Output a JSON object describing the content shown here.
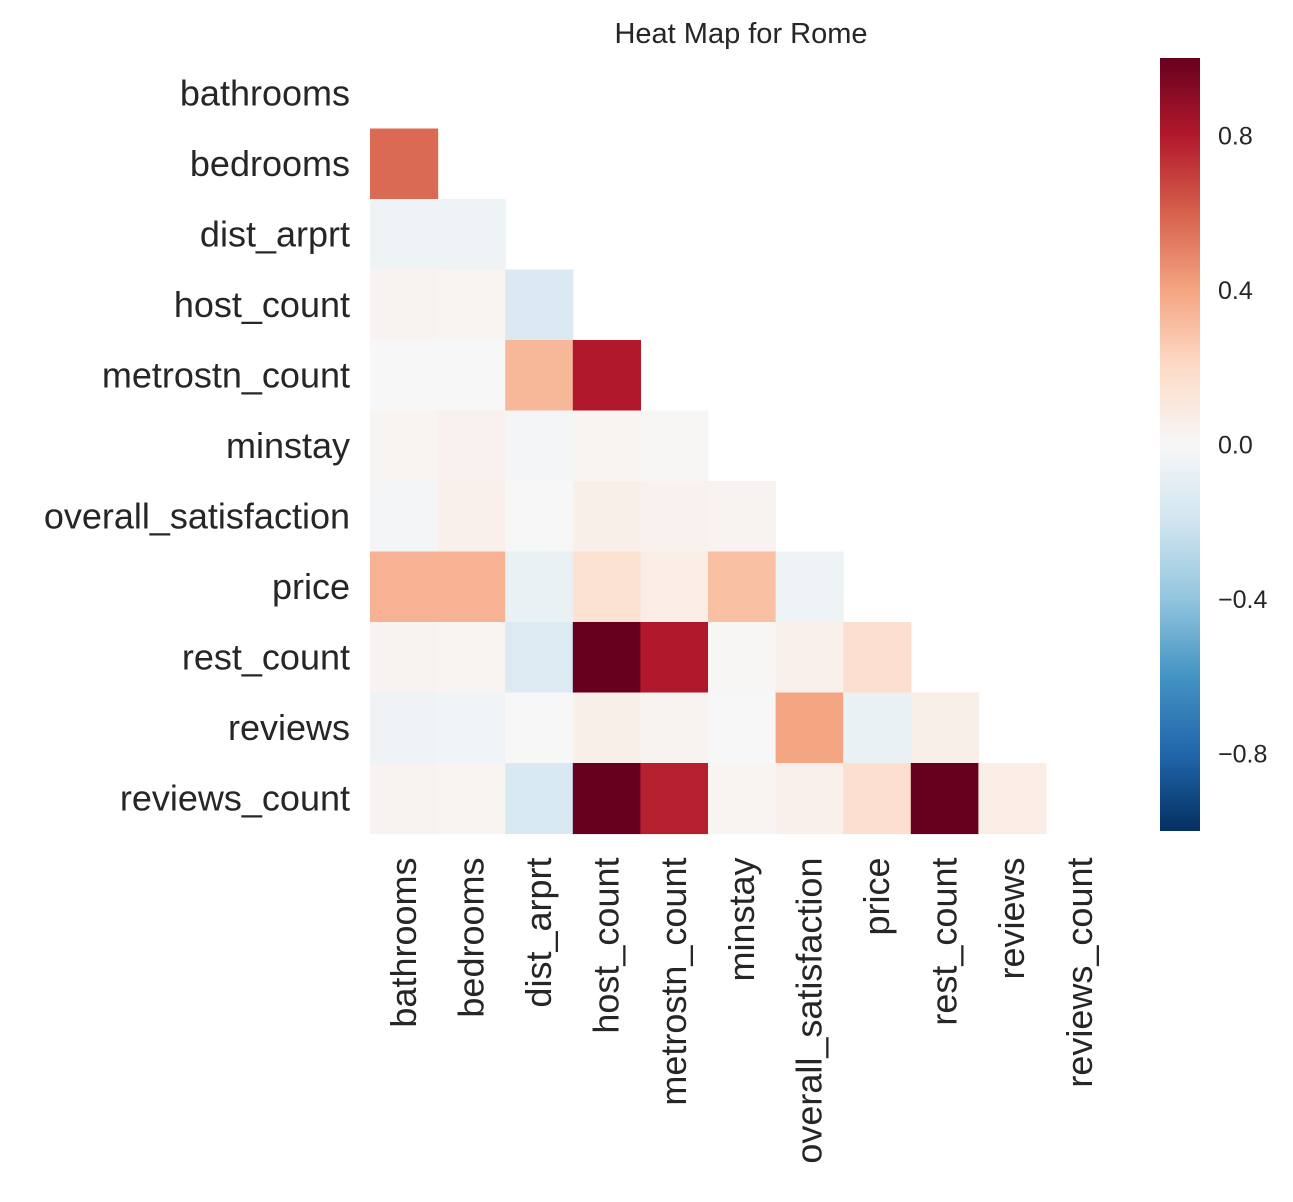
{
  "chart_data": {
    "type": "heatmap",
    "title": "Heat Map for Rome",
    "variables": [
      "bathrooms",
      "bedrooms",
      "dist_arprt",
      "host_count",
      "metrostn_count",
      "minstay",
      "overall_satisfaction",
      "price",
      "rest_count",
      "reviews",
      "reviews_count"
    ],
    "mask": "lower-triangle",
    "colormap": "RdBu_r",
    "vmin": -1,
    "vmax": 1,
    "colorbar_ticks": [
      -0.8,
      -0.4,
      0.0,
      0.4,
      0.8
    ],
    "colorbar_tick_labels": [
      "−0.8",
      "−0.4",
      "0.0",
      "0.4",
      "0.8"
    ],
    "matrix": [
      [
        null,
        null,
        null,
        null,
        null,
        null,
        null,
        null,
        null,
        null,
        null
      ],
      [
        0.57,
        null,
        null,
        null,
        null,
        null,
        null,
        null,
        null,
        null,
        null
      ],
      [
        -0.05,
        -0.05,
        null,
        null,
        null,
        null,
        null,
        null,
        null,
        null,
        null
      ],
      [
        0.03,
        0.02,
        -0.15,
        null,
        null,
        null,
        null,
        null,
        null,
        null,
        null
      ],
      [
        0.0,
        0.0,
        0.33,
        0.8,
        null,
        null,
        null,
        null,
        null,
        null,
        null
      ],
      [
        0.02,
        0.04,
        -0.02,
        0.02,
        0.01,
        null,
        null,
        null,
        null,
        null,
        null
      ],
      [
        -0.02,
        0.05,
        0.0,
        0.06,
        0.04,
        0.03,
        null,
        null,
        null,
        null,
        null
      ],
      [
        0.35,
        0.35,
        -0.07,
        0.15,
        0.07,
        0.3,
        -0.05,
        null,
        null,
        null,
        null
      ],
      [
        0.03,
        0.02,
        -0.14,
        1.0,
        0.8,
        0.01,
        0.05,
        0.17,
        null,
        null,
        null
      ],
      [
        -0.04,
        -0.03,
        0.0,
        0.06,
        0.03,
        0.0,
        0.4,
        -0.07,
        0.06,
        null,
        null
      ],
      [
        0.03,
        0.02,
        -0.16,
        1.0,
        0.78,
        0.02,
        0.05,
        0.17,
        1.0,
        0.07,
        null
      ]
    ]
  }
}
